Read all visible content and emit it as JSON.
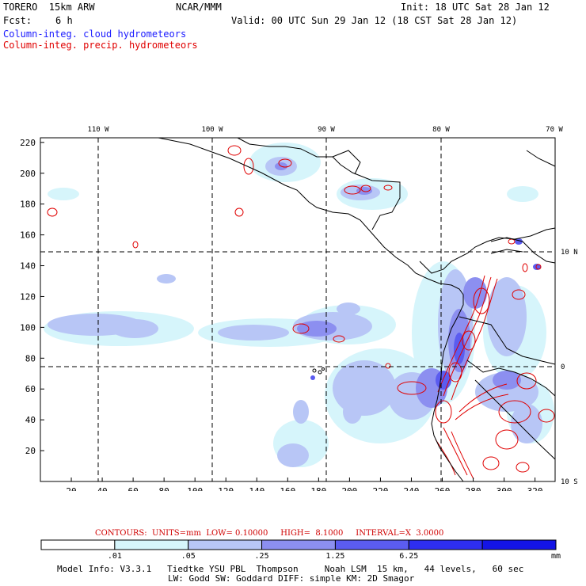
{
  "header": {
    "model_name": "TORERO  15km ARW",
    "org": "NCAR/MMM",
    "init": "Init: 18 UTC Sat 28 Jan 12",
    "fcst_label": "Fcst:",
    "fcst_value": "6 h",
    "valid": "Valid: 00 UTC Sun 29 Jan 12 (18 CST Sat 28 Jan 12)",
    "field1": "Column-integ. cloud hydrometeors",
    "field2": "Column-integ. precip. hydrometeors"
  },
  "map": {
    "lon_labels": [
      "110 W",
      "100 W",
      "90 W",
      "80 W",
      "70 W"
    ],
    "lat_labels": [
      "10 N",
      "0",
      "10 S"
    ],
    "x_ticks": [
      "20",
      "40",
      "60",
      "80",
      "100",
      "120",
      "140",
      "160",
      "180",
      "200",
      "220",
      "240",
      "260",
      "280",
      "300",
      "320"
    ],
    "y_ticks": [
      "220",
      "200",
      "180",
      "160",
      "140",
      "120",
      "100",
      "80",
      "60",
      "40",
      "20"
    ]
  },
  "contour_info": "CONTOURS:  UNITS=mm  LOW= 0.10000     HIGH=  8.1000     INTERVAL=X  3.0000",
  "legend": {
    "colors": [
      "#ffffff",
      "#d6f5fb",
      "#b8c6f6",
      "#8c8ff0",
      "#5b5cf0",
      "#2e2ef0",
      "#1414e6"
    ],
    "labels": [
      ".01",
      ".05",
      ".25",
      "1.25",
      "6.25"
    ],
    "units": "mm"
  },
  "model_info": {
    "line1": "Model Info: V3.3.1   Tiedtke YSU PBL  Thompson     Noah LSM  15 km,   44 levels,   60 sec",
    "line2": "LW: Godd SW: Goddard DIFF: simple KM: 2D Smagor"
  }
}
